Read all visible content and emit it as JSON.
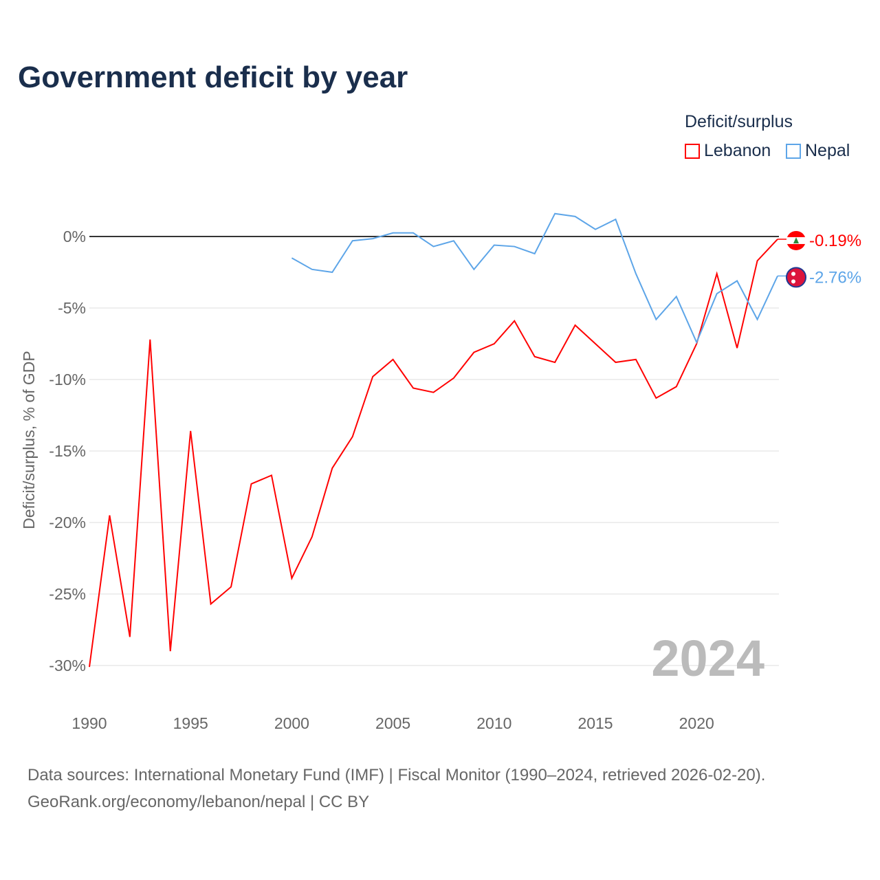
{
  "chart_data": {
    "type": "line",
    "title": "Government deficit by year",
    "ylabel": "Deficit/surplus, % of GDP",
    "xlabel": "",
    "xlim": [
      1990,
      2024
    ],
    "ylim": [
      -32,
      3
    ],
    "x_ticks": [
      1990,
      1995,
      2000,
      2005,
      2010,
      2015,
      2020
    ],
    "x_tick_labels": [
      "1990",
      "1995",
      "2000",
      "2005",
      "2010",
      "2015",
      "2020"
    ],
    "y_ticks": [
      0,
      -5,
      -10,
      -15,
      -20,
      -25,
      -30
    ],
    "y_tick_labels": [
      "0%",
      "-5%",
      "-10%",
      "-15%",
      "-20%",
      "-25%",
      "-30%"
    ],
    "legend_title": "Deficit/surplus",
    "legend_position": "top-right",
    "year_watermark": "2024",
    "series": [
      {
        "name": "Lebanon",
        "color": "#ff0000",
        "end_label": "-0.19%",
        "x": [
          1990,
          1991,
          1992,
          1993,
          1994,
          1995,
          1996,
          1997,
          1998,
          1999,
          2000,
          2001,
          2002,
          2003,
          2004,
          2005,
          2006,
          2007,
          2008,
          2009,
          2010,
          2011,
          2012,
          2013,
          2014,
          2015,
          2016,
          2017,
          2018,
          2019,
          2020,
          2021,
          2022,
          2023,
          2024
        ],
        "values": [
          -30.1,
          -19.5,
          -28.0,
          -7.2,
          -29.0,
          -13.6,
          -25.7,
          -24.5,
          -17.3,
          -16.7,
          -23.9,
          -21.0,
          -16.2,
          -14.0,
          -9.8,
          -8.6,
          -10.6,
          -10.9,
          -9.9,
          -8.1,
          -7.5,
          -5.9,
          -8.4,
          -8.8,
          -6.2,
          -7.5,
          -8.8,
          -8.6,
          -11.3,
          -10.5,
          -7.5,
          -2.6,
          -7.8,
          -1.7,
          -0.19
        ]
      },
      {
        "name": "Nepal",
        "color": "#5da5e8",
        "end_label": "-2.76%",
        "x": [
          2000,
          2001,
          2002,
          2003,
          2004,
          2005,
          2006,
          2007,
          2008,
          2009,
          2010,
          2011,
          2012,
          2013,
          2014,
          2015,
          2016,
          2017,
          2018,
          2019,
          2020,
          2021,
          2022,
          2023,
          2024
        ],
        "values": [
          -1.5,
          -2.3,
          -2.5,
          -0.3,
          -0.15,
          0.25,
          0.25,
          -0.7,
          -0.3,
          -2.3,
          -0.6,
          -0.7,
          -1.2,
          1.6,
          1.4,
          0.5,
          1.2,
          -2.6,
          -5.8,
          -4.2,
          -7.4,
          -4.0,
          -3.1,
          -5.8,
          -2.76
        ]
      }
    ]
  },
  "source_line1": "Data sources: International Monetary Fund (IMF) | Fiscal Monitor (1990–2024, retrieved 2026-02-20).",
  "source_line2": "GeoRank.org/economy/lebanon/nepal | CC BY"
}
